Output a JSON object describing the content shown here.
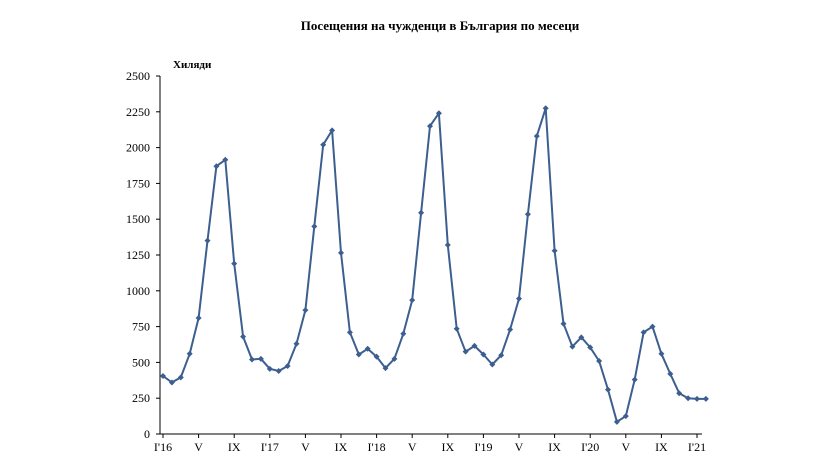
{
  "chart_data": {
    "type": "line",
    "title": "Посещения на чужденци в България по месеци",
    "ylabel": "Хиляди",
    "xlabel": "",
    "ylim": [
      0,
      2500
    ],
    "yticks": [
      0,
      250,
      500,
      750,
      1000,
      1250,
      1500,
      1750,
      2000,
      2250,
      2500
    ],
    "grid": false,
    "legend": "none",
    "series_color": "#3c5f8f",
    "x_tick_labels": [
      {
        "index": 0,
        "label": "I'16"
      },
      {
        "index": 4,
        "label": "V"
      },
      {
        "index": 8,
        "label": "IX"
      },
      {
        "index": 12,
        "label": "I'17"
      },
      {
        "index": 16,
        "label": "V"
      },
      {
        "index": 20,
        "label": "IX"
      },
      {
        "index": 24,
        "label": "I'18"
      },
      {
        "index": 28,
        "label": "V"
      },
      {
        "index": 32,
        "label": "IX"
      },
      {
        "index": 36,
        "label": "I'19"
      },
      {
        "index": 40,
        "label": "V"
      },
      {
        "index": 44,
        "label": "IX"
      },
      {
        "index": 48,
        "label": "I'20"
      },
      {
        "index": 52,
        "label": "V"
      },
      {
        "index": 56,
        "label": "IX"
      },
      {
        "index": 60,
        "label": "I'21"
      }
    ],
    "series": [
      {
        "values": [
          405,
          360,
          395,
          560,
          810,
          1350,
          1870,
          1915,
          1190,
          680,
          520,
          525,
          455,
          440,
          475,
          630,
          865,
          1450,
          2020,
          2120,
          1265,
          710,
          555,
          595,
          540,
          460,
          525,
          700,
          935,
          1545,
          2150,
          2240,
          1320,
          735,
          575,
          615,
          555,
          485,
          550,
          730,
          945,
          1535,
          2080,
          2275,
          1280,
          770,
          610,
          675,
          605,
          510,
          310,
          85,
          125,
          380,
          710,
          750,
          560,
          420,
          285,
          250,
          245,
          245
        ]
      }
    ]
  }
}
